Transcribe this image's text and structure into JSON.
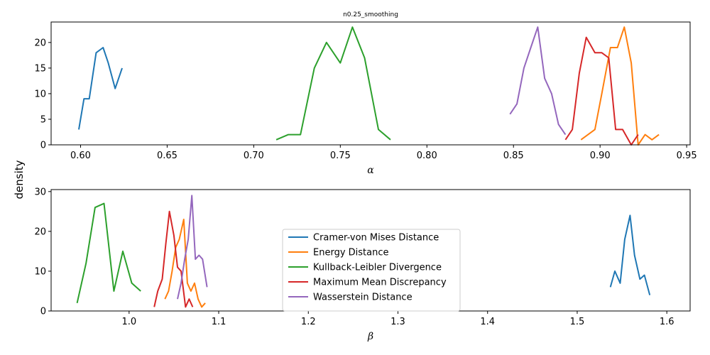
{
  "figure": {
    "title": "n0.25_smoothing",
    "ylabel": "density"
  },
  "colors": {
    "Cramer-von Mises Distance": "#1f77b4",
    "Energy Distance": "#ff7f0e",
    "Kullback-Leibler Divergence": "#2ca02c",
    "Maximum Mean Discrepancy": "#d62728",
    "Wasserstein Distance": "#9467bd"
  },
  "chart_data": [
    {
      "type": "line",
      "xlabel": "α",
      "xlim": [
        0.583,
        0.952
      ],
      "ylim": [
        0,
        24
      ],
      "xticks": [
        "0.60",
        "0.65",
        "0.70",
        "0.75",
        "0.80",
        "0.85",
        "0.90",
        "0.95"
      ],
      "yticks": [
        "0",
        "5",
        "10",
        "15",
        "20"
      ],
      "series": [
        {
          "name": "Cramer-von Mises Distance",
          "points": [
            [
              0.599,
              3
            ],
            [
              0.602,
              9
            ],
            [
              0.605,
              9
            ],
            [
              0.609,
              18
            ],
            [
              0.613,
              19
            ],
            [
              0.616,
              16
            ],
            [
              0.62,
              11
            ],
            [
              0.624,
              15
            ]
          ]
        },
        {
          "name": "Energy Distance",
          "points": [
            [
              0.889,
              1
            ],
            [
              0.897,
              3
            ],
            [
              0.901,
              10
            ],
            [
              0.906,
              19
            ],
            [
              0.91,
              19
            ],
            [
              0.914,
              23
            ],
            [
              0.918,
              16
            ],
            [
              0.922,
              0
            ],
            [
              0.926,
              2
            ],
            [
              0.93,
              1
            ],
            [
              0.934,
              2
            ]
          ]
        },
        {
          "name": "Kullback-Leibler Divergence",
          "points": [
            [
              0.713,
              1
            ],
            [
              0.72,
              2
            ],
            [
              0.727,
              2
            ],
            [
              0.735,
              15
            ],
            [
              0.742,
              20
            ],
            [
              0.75,
              16
            ],
            [
              0.757,
              23
            ],
            [
              0.764,
              17
            ],
            [
              0.772,
              3
            ],
            [
              0.779,
              1
            ]
          ]
        },
        {
          "name": "Maximum Mean Discrepancy",
          "points": [
            [
              0.88,
              1
            ],
            [
              0.884,
              3
            ],
            [
              0.888,
              14
            ],
            [
              0.892,
              21
            ],
            [
              0.897,
              18
            ],
            [
              0.901,
              18
            ],
            [
              0.905,
              17
            ],
            [
              0.909,
              3
            ],
            [
              0.913,
              3
            ],
            [
              0.918,
              0
            ],
            [
              0.922,
              2
            ]
          ]
        },
        {
          "name": "Wasserstein Distance",
          "points": [
            [
              0.848,
              6
            ],
            [
              0.852,
              8
            ],
            [
              0.856,
              15
            ],
            [
              0.86,
              19
            ],
            [
              0.864,
              23
            ],
            [
              0.868,
              13
            ],
            [
              0.872,
              10
            ],
            [
              0.876,
              4
            ],
            [
              0.88,
              2
            ]
          ]
        }
      ]
    },
    {
      "type": "line",
      "xlabel": "β",
      "xlim": [
        0.913,
        1.626
      ],
      "ylim": [
        0,
        30.5
      ],
      "xticks": [
        "1.0",
        "1.1",
        "1.2",
        "1.3",
        "1.4",
        "1.5",
        "1.6"
      ],
      "yticks": [
        "0",
        "10",
        "20",
        "30"
      ],
      "legend": {
        "position": "center",
        "entries": [
          "Cramer-von Mises Distance",
          "Energy Distance",
          "Kullback-Leibler Divergence",
          "Maximum Mean Discrepancy",
          "Wasserstein Distance"
        ]
      },
      "series": [
        {
          "name": "Cramer-von Mises Distance",
          "points": [
            [
              1.537,
              6
            ],
            [
              1.542,
              10
            ],
            [
              1.548,
              7
            ],
            [
              1.553,
              18
            ],
            [
              1.559,
              24
            ],
            [
              1.564,
              14
            ],
            [
              1.57,
              8
            ],
            [
              1.575,
              9
            ],
            [
              1.581,
              4
            ]
          ]
        },
        {
          "name": "Energy Distance",
          "points": [
            [
              1.04,
              3
            ],
            [
              1.044,
              5
            ],
            [
              1.048,
              10
            ],
            [
              1.052,
              16
            ],
            [
              1.056,
              18
            ],
            [
              1.061,
              23
            ],
            [
              1.065,
              7
            ],
            [
              1.069,
              5
            ],
            [
              1.073,
              7
            ],
            [
              1.077,
              3
            ],
            [
              1.081,
              1
            ],
            [
              1.085,
              2
            ]
          ]
        },
        {
          "name": "Kullback-Leibler Divergence",
          "points": [
            [
              0.942,
              2
            ],
            [
              0.952,
              12
            ],
            [
              0.962,
              26
            ],
            [
              0.972,
              27
            ],
            [
              0.983,
              5
            ],
            [
              0.993,
              15
            ],
            [
              1.003,
              7
            ],
            [
              1.013,
              5
            ]
          ]
        },
        {
          "name": "Maximum Mean Discrepancy",
          "points": [
            [
              1.028,
              1
            ],
            [
              1.032,
              5
            ],
            [
              1.037,
              8
            ],
            [
              1.041,
              17
            ],
            [
              1.045,
              25
            ],
            [
              1.05,
              19
            ],
            [
              1.054,
              11
            ],
            [
              1.058,
              10
            ],
            [
              1.063,
              1
            ],
            [
              1.067,
              3
            ],
            [
              1.071,
              1
            ]
          ]
        },
        {
          "name": "Wasserstein Distance",
          "points": [
            [
              1.054,
              3
            ],
            [
              1.058,
              7
            ],
            [
              1.062,
              13
            ],
            [
              1.066,
              18
            ],
            [
              1.07,
              29
            ],
            [
              1.074,
              13
            ],
            [
              1.078,
              14
            ],
            [
              1.082,
              13
            ],
            [
              1.087,
              6
            ]
          ]
        }
      ]
    }
  ]
}
